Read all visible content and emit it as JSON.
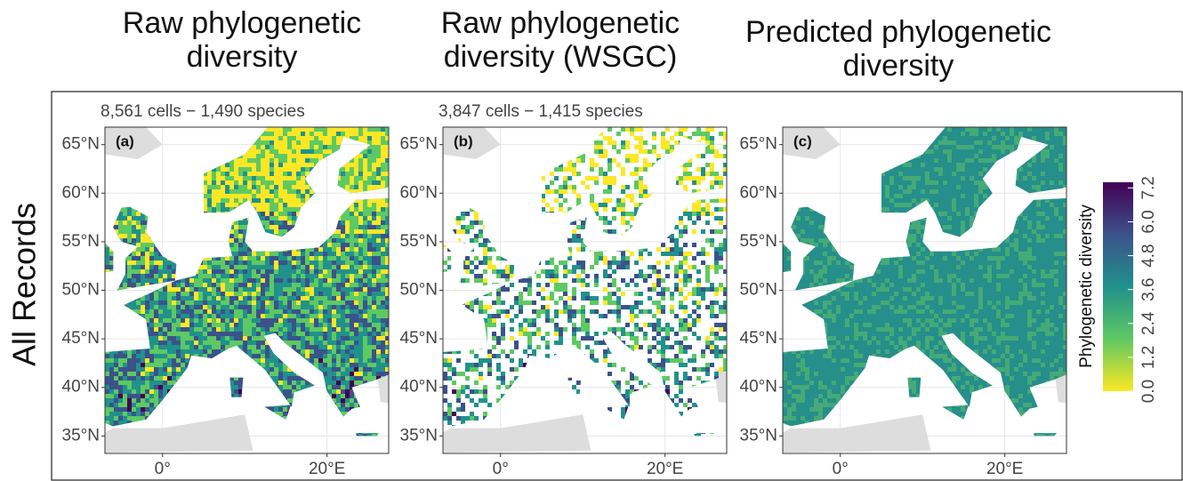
{
  "columns": [
    {
      "title": [
        "Raw phylogenetic",
        "diversity"
      ],
      "subtitle": "8,561 cells − 1,490 species",
      "panel_label": "(a)"
    },
    {
      "title": [
        "Raw phylogenetic",
        "diversity (WSGC)"
      ],
      "subtitle": "3,847 cells − 1,415 species",
      "panel_label": "(b)"
    },
    {
      "title": [
        "Predicted phylogenetic",
        "diversity"
      ],
      "panel_label": "(c)"
    }
  ],
  "row_label": "All Records",
  "lon_lim": [
    -7,
    27.5
  ],
  "lat_lim": [
    33.2,
    66.8
  ],
  "lat_ticks": [
    {
      "value": 65,
      "label": "65°N"
    },
    {
      "value": 60,
      "label": "60°N"
    },
    {
      "value": 55,
      "label": "55°N"
    },
    {
      "value": 50,
      "label": "50°N"
    },
    {
      "value": 45,
      "label": "45°N"
    },
    {
      "value": 40,
      "label": "40°N"
    },
    {
      "value": 35,
      "label": "35°N"
    }
  ],
  "lon_ticks": [
    {
      "value": 0,
      "label": "0°"
    },
    {
      "value": 20,
      "label": "20°E"
    }
  ],
  "colorbar": {
    "title": "Phylogenetic diversity",
    "lim": [
      0,
      7.4
    ],
    "ticks": [
      {
        "value": 0,
        "label": "0.0"
      },
      {
        "value": 1.2,
        "label": "1.2"
      },
      {
        "value": 2.4,
        "label": "2.4"
      },
      {
        "value": 3.6,
        "label": "3.6"
      },
      {
        "value": 4.8,
        "label": "4.8"
      },
      {
        "value": 6,
        "label": "6.0"
      },
      {
        "value": 7.2,
        "label": "7.2"
      }
    ],
    "colors": [
      "#fde725",
      "#5ec962",
      "#21918c",
      "#3b528b",
      "#440154"
    ]
  }
}
